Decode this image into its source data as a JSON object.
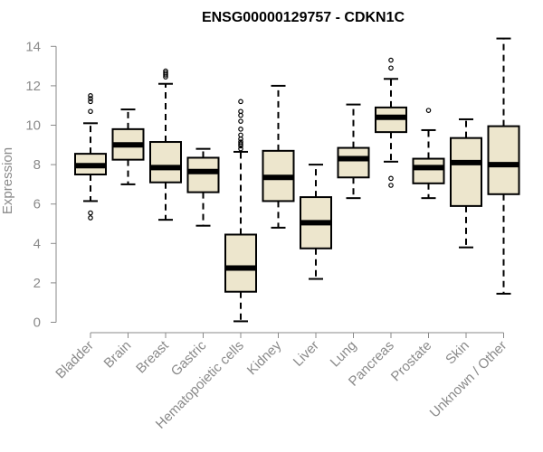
{
  "chart_data": {
    "type": "box",
    "title": "ENSG00000129757 - CDKN1C",
    "xlabel": "",
    "ylabel": "Expression",
    "ylim": [
      0,
      14
    ],
    "yticks": [
      0,
      2,
      4,
      6,
      8,
      10,
      12,
      14
    ],
    "grid": false,
    "box_color": "#ede6cd",
    "categories": [
      "Bladder",
      "Brain",
      "Breast",
      "Gastric",
      "Hematopoietic cells",
      "Kidney",
      "Liver",
      "Lung",
      "Pancreas",
      "Prostate",
      "Skin",
      "Unknown / Other"
    ],
    "boxes": [
      {
        "category": "Bladder",
        "whisker_low": 6.15,
        "q1": 7.5,
        "median": 7.95,
        "q3": 8.55,
        "whisker_high": 10.1,
        "outliers": [
          5.3,
          5.55,
          10.7,
          11.2,
          11.35,
          11.5
        ]
      },
      {
        "category": "Brain",
        "whisker_low": 7.0,
        "q1": 8.25,
        "median": 9.0,
        "q3": 9.8,
        "whisker_high": 10.8,
        "outliers": []
      },
      {
        "category": "Breast",
        "whisker_low": 5.2,
        "q1": 7.1,
        "median": 7.85,
        "q3": 9.15,
        "whisker_high": 12.1,
        "outliers": [
          12.45,
          12.55,
          12.65,
          12.75
        ]
      },
      {
        "category": "Gastric",
        "whisker_low": 4.9,
        "q1": 6.6,
        "median": 7.65,
        "q3": 8.35,
        "whisker_high": 8.8,
        "outliers": []
      },
      {
        "category": "Hematopoietic cells",
        "whisker_low": 0.05,
        "q1": 1.55,
        "median": 2.75,
        "q3": 4.45,
        "whisker_high": 8.65,
        "outliers": [
          8.8,
          8.95,
          9.05,
          9.15,
          9.3,
          9.5,
          9.8,
          10.2,
          10.5,
          10.7,
          11.2
        ]
      },
      {
        "category": "Kidney",
        "whisker_low": 4.8,
        "q1": 6.15,
        "median": 7.35,
        "q3": 8.7,
        "whisker_high": 12.0,
        "outliers": []
      },
      {
        "category": "Liver",
        "whisker_low": 2.2,
        "q1": 3.75,
        "median": 5.05,
        "q3": 6.35,
        "whisker_high": 8.0,
        "outliers": []
      },
      {
        "category": "Lung",
        "whisker_low": 6.3,
        "q1": 7.35,
        "median": 8.3,
        "q3": 8.85,
        "whisker_high": 11.05,
        "outliers": []
      },
      {
        "category": "Pancreas",
        "whisker_low": 8.15,
        "q1": 9.65,
        "median": 10.4,
        "q3": 10.9,
        "whisker_high": 12.35,
        "outliers": [
          6.95,
          7.3,
          12.9,
          13.3
        ]
      },
      {
        "category": "Prostate",
        "whisker_low": 6.3,
        "q1": 7.05,
        "median": 7.85,
        "q3": 8.3,
        "whisker_high": 9.75,
        "outliers": [
          10.75
        ]
      },
      {
        "category": "Skin",
        "whisker_low": 3.8,
        "q1": 5.9,
        "median": 8.1,
        "q3": 9.35,
        "whisker_high": 10.3,
        "outliers": []
      },
      {
        "category": "Unknown / Other",
        "whisker_low": 1.45,
        "q1": 6.5,
        "median": 8.0,
        "q3": 9.95,
        "whisker_high": 14.4,
        "outliers": []
      }
    ]
  }
}
